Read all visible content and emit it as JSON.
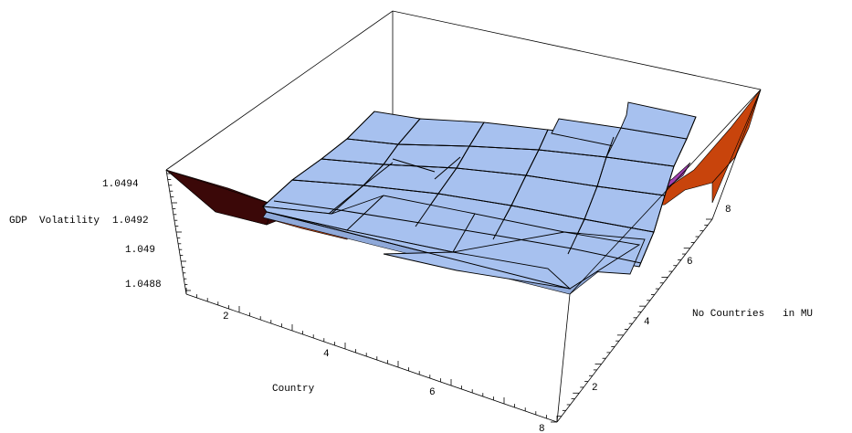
{
  "chart_data": {
    "type": "surface3d",
    "title": "",
    "xlabel": "Country",
    "ylabel": "No Countries   in MU",
    "zlabel": "GDP  Volatility",
    "x_ticks": [
      "2",
      "4",
      "6",
      "8"
    ],
    "y_ticks": [
      "2",
      "4",
      "6",
      "8"
    ],
    "z_ticks": [
      "1.0494",
      "1.0492",
      "1.049",
      "1.0488"
    ],
    "colors": {
      "surface": "#a7c1ef",
      "warm": "#c8440c",
      "dark": "#3b0808",
      "magenta": "#a040b0"
    }
  }
}
